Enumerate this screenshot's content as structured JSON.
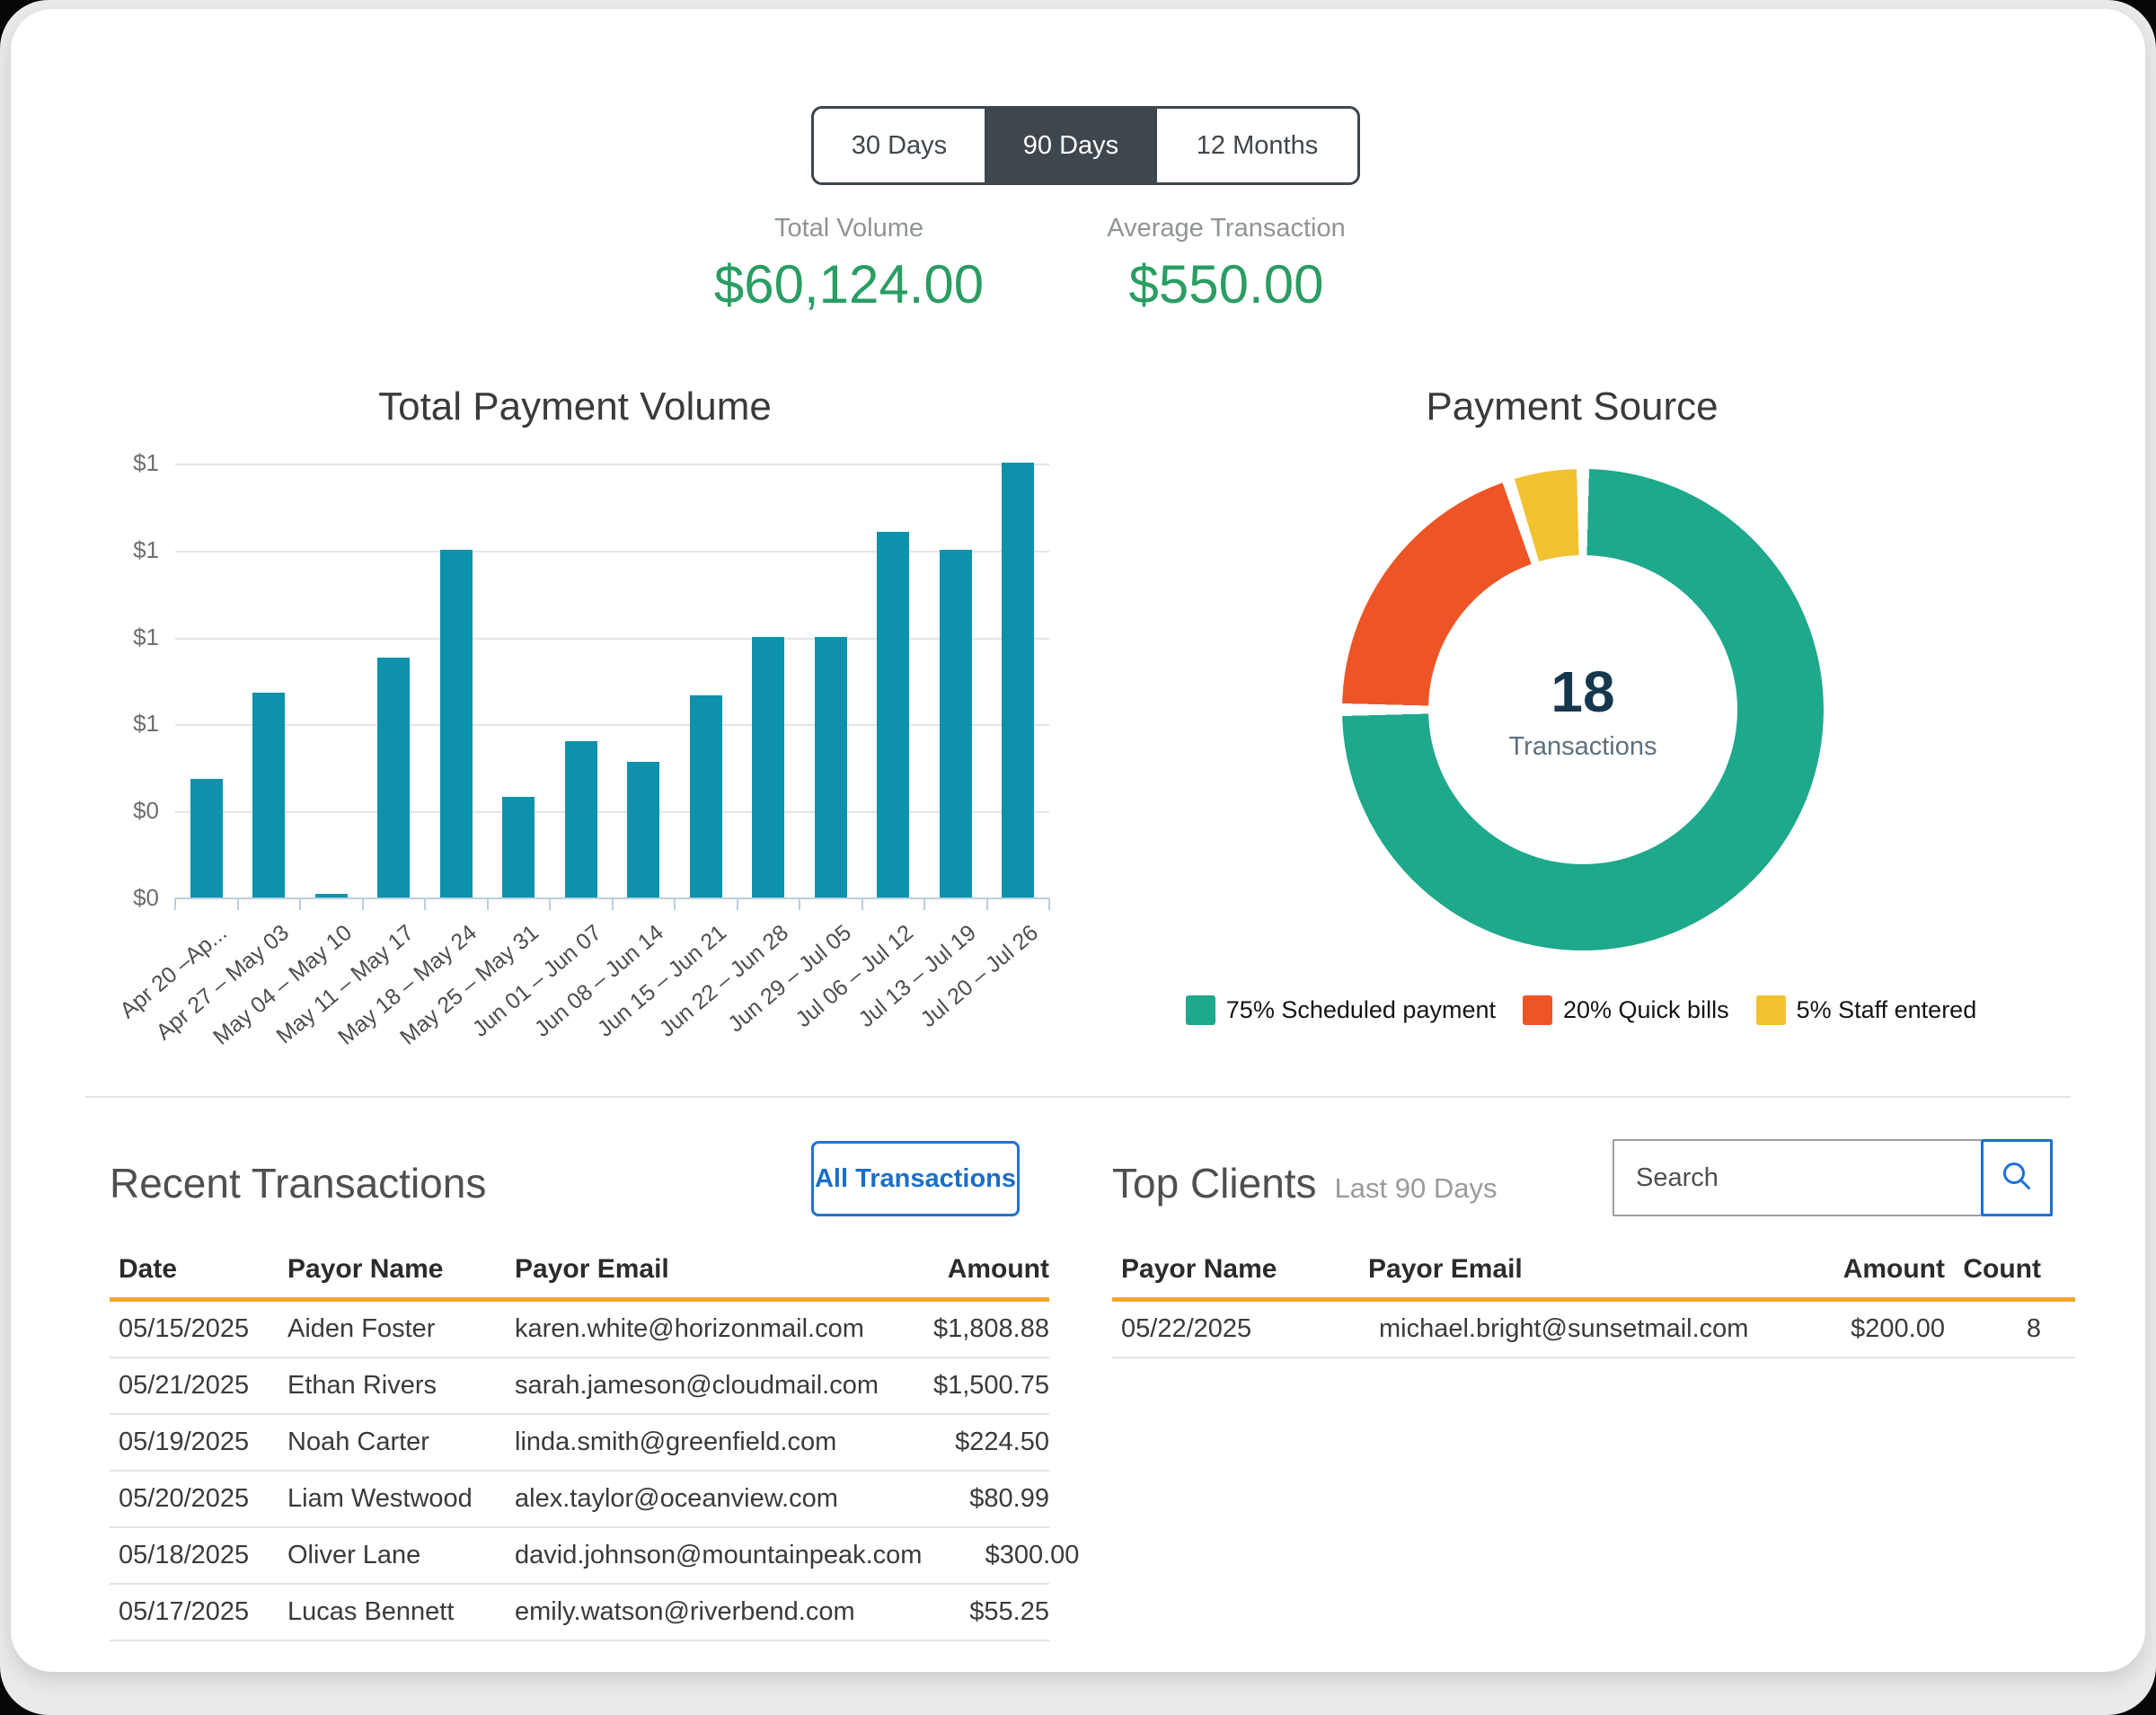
{
  "toggle": {
    "items": [
      "30 Days",
      "90 Days",
      "12 Months"
    ],
    "active_index": 1
  },
  "stats": [
    {
      "label": "Total Volume",
      "value": "$60,124.00"
    },
    {
      "label": "Average Transaction",
      "value": "$550.00"
    }
  ],
  "chart_data": [
    {
      "type": "bar",
      "title": "Total Payment Volume",
      "categories": [
        "Apr 20 –Ap...",
        "Apr 27 – May 03",
        "May 04 – May 10",
        "May 11 – May 17",
        "May 18 – May 24",
        "May 25 – May 31",
        "Jun 01 – Jun 07",
        "Jun 08 – Jun 14",
        "Jun 15 – Jun 21",
        "Jun 22 – Jun 28",
        "Jun 29 – Jul 05",
        "Jul 06 – Jul 12",
        "Jul 13 – Jul 19",
        "Jul 20 – Jul 26"
      ],
      "values": [
        0.34,
        0.59,
        0.01,
        0.69,
        1.0,
        0.29,
        0.45,
        0.39,
        0.58,
        0.75,
        0.75,
        1.05,
        1.0,
        1.25
      ],
      "ymax": 1.25,
      "ytick_labels_top_to_bottom": [
        "$1",
        "$1",
        "$1",
        "$1",
        "$0",
        "$0"
      ],
      "xlabel": "",
      "ylabel": "",
      "grid": true,
      "bar_color": "#0E92AC",
      "axis_color": "#B9CFE0"
    },
    {
      "type": "donut",
      "title": "Payment Source",
      "center_value": "18",
      "center_label": "Transactions",
      "legend_position": "bottom",
      "slices": [
        {
          "label": "Scheduled payment",
          "pct": 75,
          "color": "#1EA88C"
        },
        {
          "label": "Quick bills",
          "pct": 20,
          "color": "#EE5526"
        },
        {
          "label": "Staff entered",
          "pct": 5,
          "color": "#F0C232"
        }
      ]
    }
  ],
  "recent": {
    "title": "Recent Transactions",
    "button_label": "All Transactions",
    "headers": [
      "Date",
      "Payor Name",
      "Payor Email",
      "Amount"
    ],
    "rows": [
      [
        "05/15/2025",
        "Aiden Foster",
        "karen.white@horizonmail.com",
        "$1,808.88"
      ],
      [
        "05/21/2025",
        "Ethan Rivers",
        "sarah.jameson@cloudmail.com",
        "$1,500.75"
      ],
      [
        "05/19/2025",
        "Noah Carter",
        "linda.smith@greenfield.com",
        "$224.50"
      ],
      [
        "05/20/2025",
        "Liam Westwood",
        "alex.taylor@oceanview.com",
        "$80.99"
      ],
      [
        "05/18/2025",
        "Oliver Lane",
        "david.johnson@mountainpeak.com",
        "$300.00"
      ],
      [
        "05/17/2025",
        "Lucas Bennett",
        "emily.watson@riverbend.com",
        "$55.25"
      ]
    ]
  },
  "top_clients": {
    "title": "Top Clients",
    "subtitle": "Last 90 Days",
    "search_placeholder": "Search",
    "headers": [
      "Payor Name",
      "Payor Email",
      "Amount",
      "Count"
    ],
    "rows": [
      [
        "05/22/2025",
        "michael.bright@sunsetmail.com",
        "$200.00",
        "8"
      ]
    ]
  },
  "colors": {
    "accent_green": "#2A9D63",
    "bar_teal": "#0E92AC",
    "donut_green": "#1EA88C",
    "donut_orange": "#EE5526",
    "donut_yellow": "#F0C232",
    "link_blue": "#1D6FD8",
    "header_underline": "#F4A82C",
    "tab_dark": "#3E464E"
  }
}
